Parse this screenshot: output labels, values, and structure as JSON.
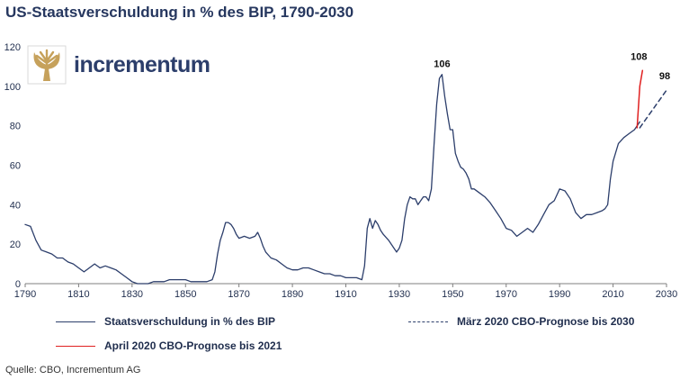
{
  "chart_data": {
    "type": "line",
    "title": "US-Staatsverschuldung in % des BIP, 1790-2030",
    "xlim": [
      1790,
      2030
    ],
    "ylim": [
      0,
      120
    ],
    "x_ticks": [
      1790,
      1810,
      1830,
      1850,
      1870,
      1890,
      1910,
      1930,
      1950,
      1970,
      1990,
      2010,
      2030
    ],
    "y_ticks": [
      0,
      20,
      40,
      60,
      80,
      100,
      120
    ],
    "series": [
      {
        "name": "Staatsverschuldung in % des BIP",
        "color": "#2c3e6b",
        "style": "solid",
        "x": [
          1790,
          1792,
          1794,
          1796,
          1798,
          1800,
          1802,
          1804,
          1806,
          1808,
          1810,
          1812,
          1814,
          1816,
          1818,
          1820,
          1822,
          1824,
          1826,
          1828,
          1830,
          1832,
          1834,
          1836,
          1838,
          1840,
          1842,
          1844,
          1846,
          1848,
          1850,
          1852,
          1854,
          1856,
          1858,
          1860,
          1861,
          1862,
          1863,
          1864,
          1865,
          1866,
          1867,
          1868,
          1869,
          1870,
          1872,
          1874,
          1876,
          1877,
          1878,
          1879,
          1880,
          1882,
          1884,
          1886,
          1888,
          1890,
          1892,
          1894,
          1896,
          1898,
          1900,
          1902,
          1904,
          1906,
          1908,
          1910,
          1912,
          1914,
          1916,
          1917,
          1918,
          1919,
          1920,
          1921,
          1922,
          1923,
          1924,
          1926,
          1928,
          1929,
          1930,
          1931,
          1932,
          1933,
          1934,
          1935,
          1936,
          1937,
          1938,
          1939,
          1940,
          1941,
          1942,
          1943,
          1944,
          1945,
          1946,
          1947,
          1948,
          1949,
          1950,
          1951,
          1952,
          1953,
          1954,
          1955,
          1956,
          1957,
          1958,
          1960,
          1962,
          1964,
          1966,
          1968,
          1970,
          1972,
          1974,
          1976,
          1978,
          1980,
          1982,
          1984,
          1986,
          1988,
          1990,
          1992,
          1994,
          1996,
          1998,
          2000,
          2002,
          2004,
          2006,
          2007,
          2008,
          2009,
          2010,
          2012,
          2014,
          2016,
          2018,
          2019,
          2020
        ],
        "values": [
          30,
          29,
          22,
          17,
          16,
          15,
          13,
          13,
          11,
          10,
          8,
          6,
          8,
          10,
          8,
          9,
          8,
          7,
          5,
          3,
          1,
          0,
          0,
          0,
          1,
          1,
          1,
          2,
          2,
          2,
          2,
          1,
          1,
          1,
          1,
          2,
          6,
          15,
          22,
          26,
          31,
          31,
          30,
          28,
          25,
          23,
          24,
          23,
          24,
          26,
          23,
          19,
          16,
          13,
          12,
          10,
          8,
          7,
          7,
          8,
          8,
          7,
          6,
          5,
          5,
          4,
          4,
          3,
          3,
          3,
          2,
          9,
          28,
          33,
          28,
          32,
          30,
          27,
          25,
          22,
          18,
          16,
          18,
          22,
          33,
          40,
          44,
          43,
          43,
          40,
          42,
          44,
          44,
          42,
          48,
          70,
          91,
          104,
          106,
          95,
          86,
          78,
          78,
          66,
          62,
          59,
          58,
          56,
          53,
          48,
          48,
          46,
          44,
          41,
          37,
          33,
          28,
          27,
          24,
          26,
          28,
          26,
          30,
          35,
          40,
          42,
          48,
          47,
          43,
          36,
          33,
          35,
          35,
          36,
          37,
          38,
          40,
          53,
          62,
          71,
          74,
          76,
          78,
          80,
          82
        ]
      },
      {
        "name": "März 2020 CBO-Prognose bis 2030",
        "color": "#2c3e6b",
        "style": "dashed",
        "x": [
          2020,
          2030
        ],
        "values": [
          79,
          98
        ]
      },
      {
        "name": "April 2020 CBO-Prognose bis 2021",
        "color": "#e02020",
        "style": "solid",
        "x": [
          2019,
          2020,
          2021
        ],
        "values": [
          79,
          100,
          108
        ]
      }
    ],
    "annotations": [
      {
        "label": "106",
        "x": 1946,
        "y": 106
      },
      {
        "label": "108",
        "x": 2021,
        "y": 108
      },
      {
        "label": "98",
        "x": 2030,
        "y": 98
      }
    ],
    "legend": [
      {
        "label": "Staatsverschuldung in % des BIP",
        "color": "#2c3e6b",
        "style": "solid"
      },
      {
        "label": "März 2020 CBO-Prognose bis 2030",
        "color": "#2c3e6b",
        "style": "dashed"
      },
      {
        "label": "April 2020 CBO-Prognose bis 2021",
        "color": "#e02020",
        "style": "solid"
      }
    ]
  },
  "logo": {
    "text": "incrementum"
  },
  "source": "Quelle: CBO, Incrementum AG"
}
